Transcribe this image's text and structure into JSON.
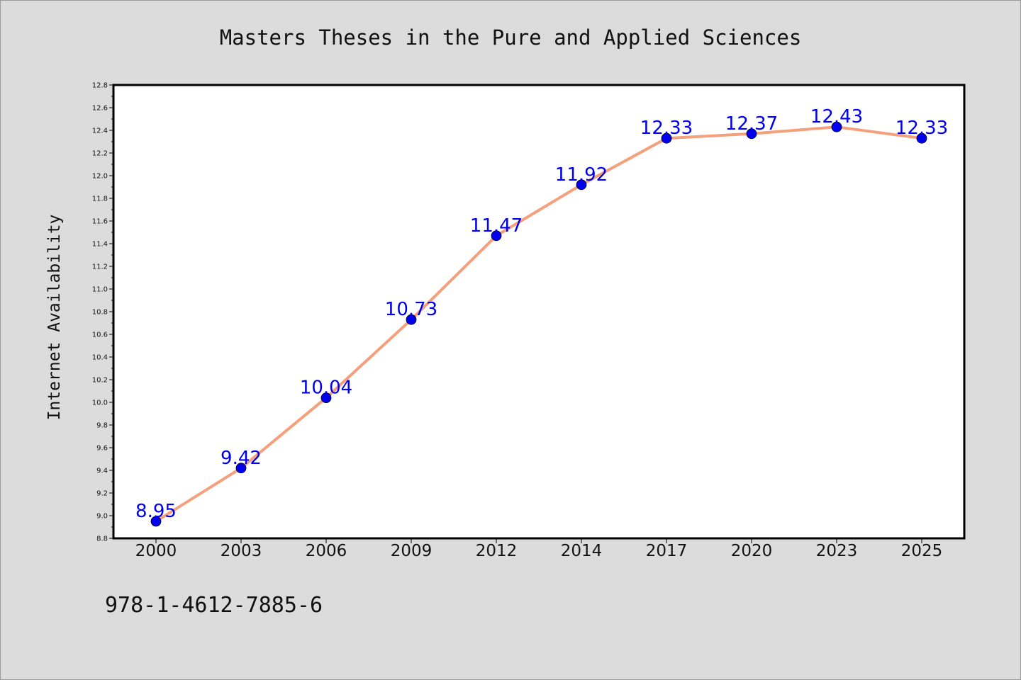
{
  "chart_data": {
    "type": "line",
    "title": "Masters Theses in the Pure and Applied Sciences",
    "xlabel": "",
    "ylabel": "Internet Availability",
    "categories": [
      "2000",
      "2003",
      "2006",
      "2009",
      "2012",
      "2014",
      "2017",
      "2020",
      "2023",
      "2025"
    ],
    "series": [
      {
        "values": [
          8.95,
          9.42,
          10.04,
          10.73,
          11.47,
          11.92,
          12.33,
          12.37,
          12.43,
          12.33
        ],
        "labels": [
          "8.95",
          "9.42",
          "10.04",
          "10.73",
          "11.47",
          "11.92",
          "12.33",
          "12.37",
          "12.43",
          "12.33"
        ],
        "line_color": "#f4a07c",
        "marker_color": "#0000ee"
      }
    ],
    "ylim": [
      8.8,
      12.8
    ],
    "yticks": [
      "8.8",
      "9.0",
      "9.2",
      "9.4",
      "9.6",
      "9.8",
      "10.0",
      "10.2",
      "10.4",
      "10.6",
      "10.8",
      "11.0",
      "11.2",
      "11.4",
      "11.6",
      "11.8",
      "12.0",
      "12.2",
      "12.4",
      "12.6",
      "12.8"
    ],
    "grid": false,
    "legend": "none"
  },
  "footer": {
    "isbn": "978-1-4612-7885-6"
  }
}
